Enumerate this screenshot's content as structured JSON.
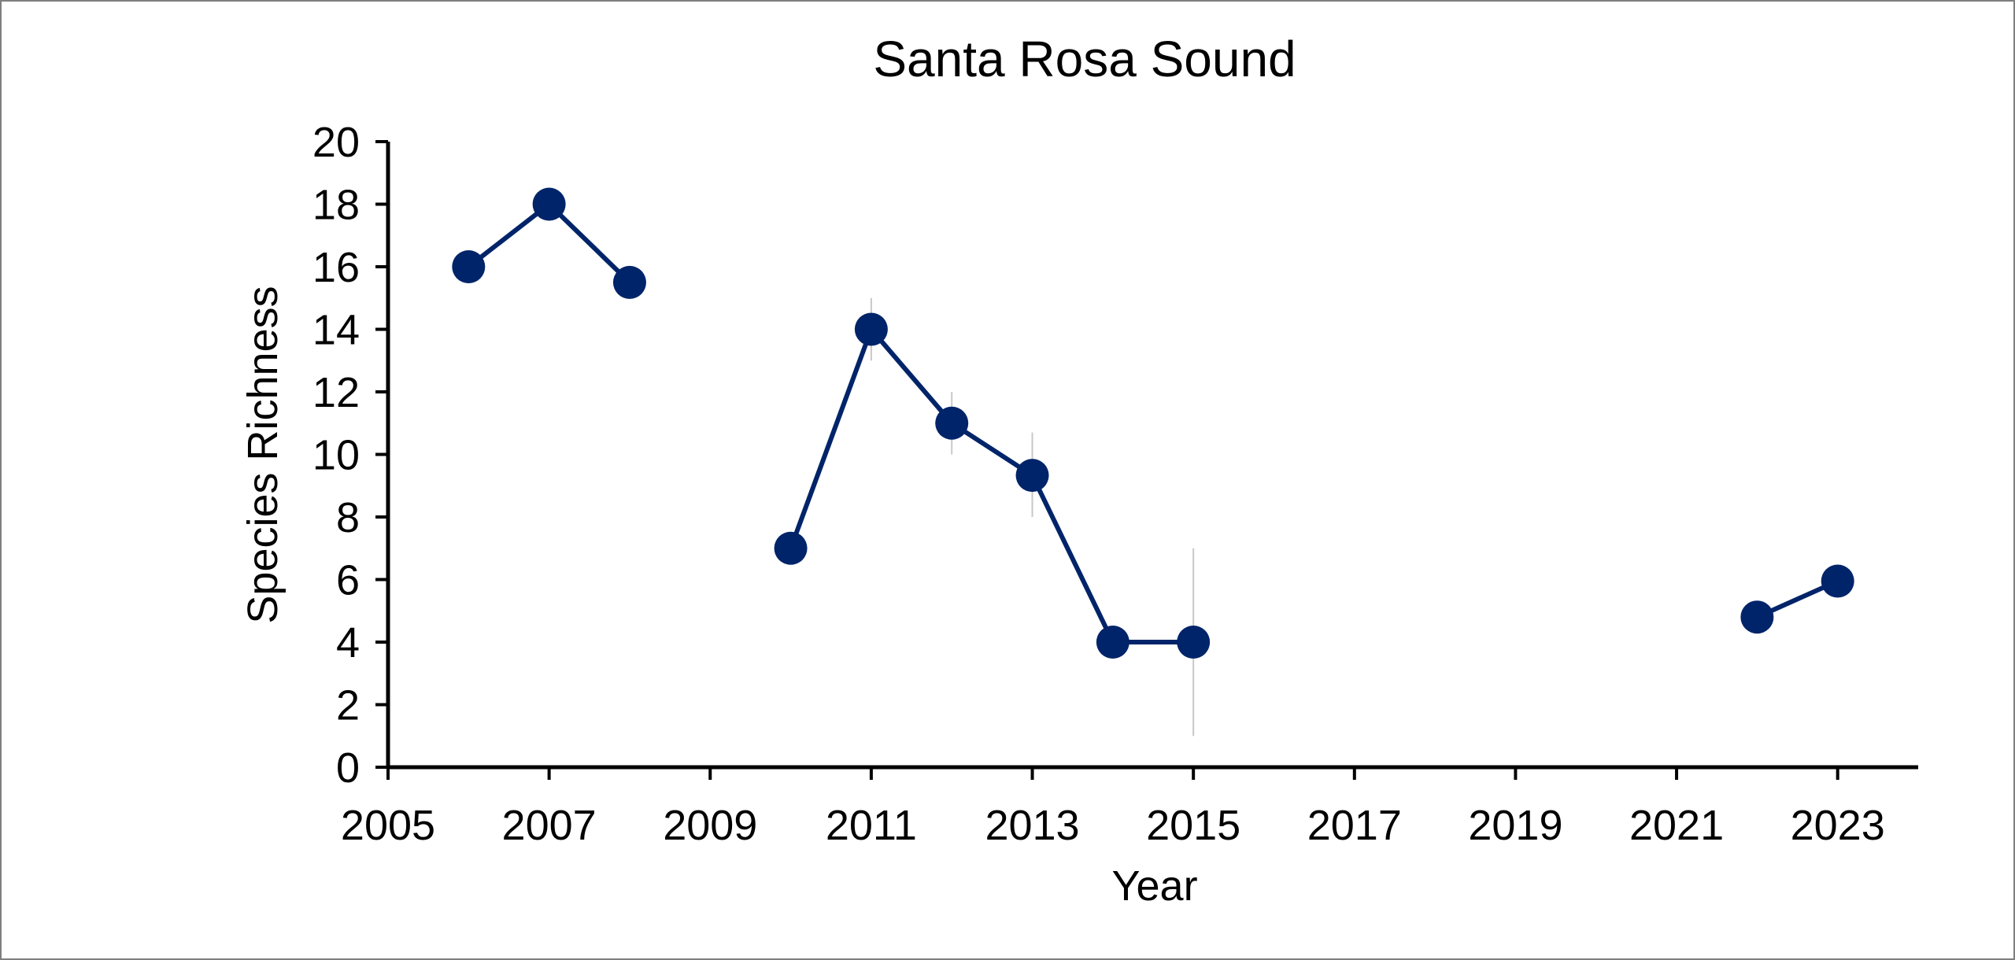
{
  "colors": {
    "series": "#002469",
    "error_bar": "#c8c8c8",
    "axis": "#000000",
    "border": "#7f7f7f"
  },
  "chart_data": {
    "type": "line",
    "title": "Santa Rosa Sound",
    "xlabel": "Year",
    "ylabel": "Species Richness",
    "xlim": [
      2005,
      2024
    ],
    "ylim": [
      0,
      20
    ],
    "x_ticks": [
      2005,
      2007,
      2009,
      2011,
      2013,
      2015,
      2017,
      2019,
      2021,
      2023
    ],
    "y_ticks": [
      0,
      2,
      4,
      6,
      8,
      10,
      12,
      14,
      16,
      18,
      20
    ],
    "grid": false,
    "legend": "none",
    "series": [
      {
        "segments": [
          [
            {
              "x": 2006,
              "y": 16.0
            },
            {
              "x": 2007,
              "y": 18.0
            },
            {
              "x": 2008,
              "y": 15.5
            }
          ],
          [
            {
              "x": 2010,
              "y": 7.0
            },
            {
              "x": 2011,
              "y": 14.0,
              "err_low": 13.0,
              "err_high": 15.0
            },
            {
              "x": 2012,
              "y": 11.0,
              "err_low": 10.0,
              "err_high": 12.0
            },
            {
              "x": 2013,
              "y": 9.33,
              "err_low": 8.0,
              "err_high": 10.7
            },
            {
              "x": 2014,
              "y": 4.0
            },
            {
              "x": 2015,
              "y": 4.0,
              "err_low": 1.0,
              "err_high": 7.0
            }
          ],
          [
            {
              "x": 2022,
              "y": 4.8
            },
            {
              "x": 2023,
              "y": 5.95
            }
          ]
        ]
      }
    ]
  }
}
